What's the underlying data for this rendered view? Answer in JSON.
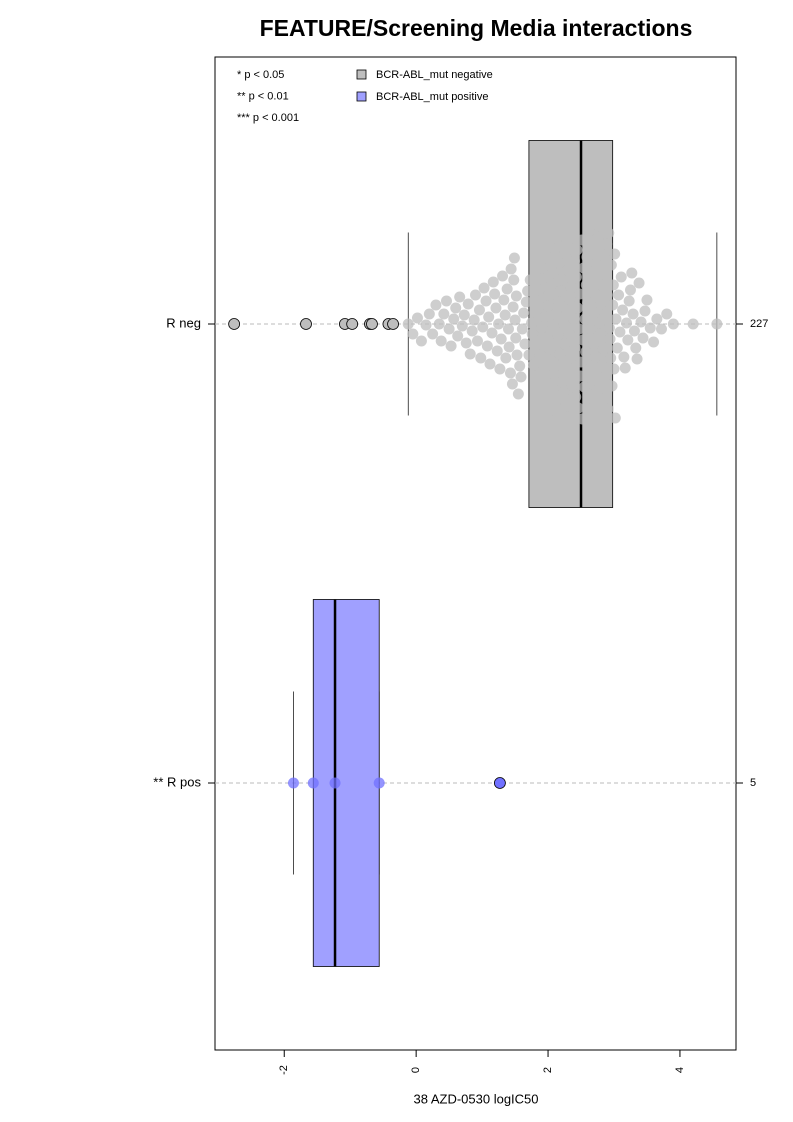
{
  "chart_data": {
    "type": "boxplot",
    "title": "FEATURE/Screening Media interactions",
    "x_label": "38 AZD-0530 logIC50",
    "xlim": [
      -3.05,
      4.85
    ],
    "xticks": [
      -2,
      0,
      2,
      4
    ],
    "annotations": [
      "* p < 0.05",
      "** p < 0.01",
      "*** p < 0.001"
    ],
    "groups": [
      {
        "name": "BCR-ABL_mut negative",
        "label": "R neg",
        "n": 227,
        "color": "#bebebe",
        "point_color": "#bebebe",
        "q1": 1.71,
        "median": 2.5,
        "q3": 2.98,
        "whisker_low": -0.12,
        "whisker_high": 4.56,
        "values": [
          -2.76,
          -1.67,
          -1.08,
          -0.97,
          -0.7,
          -0.67,
          -0.42,
          -0.35,
          -0.12,
          -0.05,
          0.02,
          0.08,
          0.15,
          0.2,
          0.25,
          0.3,
          0.35,
          0.38,
          0.42,
          0.46,
          0.5,
          0.53,
          0.57,
          0.6,
          0.63,
          0.66,
          0.7,
          0.73,
          0.76,
          0.79,
          0.82,
          0.85,
          0.88,
          0.9,
          0.93,
          0.96,
          0.98,
          1.01,
          1.03,
          1.06,
          1.08,
          1.1,
          1.12,
          1.15,
          1.17,
          1.19,
          1.21,
          1.23,
          1.25,
          1.27,
          1.29,
          1.31,
          1.33,
          1.35,
          1.36,
          1.38,
          1.4,
          1.41,
          1.43,
          1.44,
          1.46,
          1.47,
          1.48,
          1.49,
          1.5,
          1.51,
          1.52,
          1.53,
          1.55,
          1.57,
          1.59,
          1.61,
          1.63,
          1.65,
          1.67,
          1.69,
          1.71,
          1.73,
          1.75,
          1.76,
          1.78,
          1.8,
          1.81,
          1.83,
          1.85,
          1.86,
          1.88,
          1.9,
          1.91,
          1.92,
          1.94,
          1.95,
          1.96,
          1.98,
          1.99,
          2.0,
          2.01,
          2.03,
          2.04,
          2.05,
          2.06,
          2.07,
          2.08,
          2.09,
          2.1,
          2.11,
          2.12,
          2.13,
          2.14,
          2.15,
          2.16,
          2.17,
          2.18,
          2.19,
          2.2,
          2.21,
          2.22,
          2.23,
          2.24,
          2.25,
          2.26,
          2.27,
          2.28,
          2.29,
          2.3,
          2.31,
          2.32,
          2.33,
          2.34,
          2.35,
          2.36,
          2.37,
          2.38,
          2.39,
          2.4,
          2.41,
          2.42,
          2.43,
          2.44,
          2.45,
          2.46,
          2.47,
          2.48,
          2.49,
          2.5,
          2.51,
          2.52,
          2.53,
          2.54,
          2.55,
          2.56,
          2.57,
          2.58,
          2.59,
          2.6,
          2.61,
          2.62,
          2.63,
          2.64,
          2.65,
          2.66,
          2.67,
          2.68,
          2.69,
          2.7,
          2.71,
          2.72,
          2.73,
          2.74,
          2.75,
          2.76,
          2.77,
          2.78,
          2.79,
          2.8,
          2.81,
          2.82,
          2.83,
          2.84,
          2.85,
          2.86,
          2.87,
          2.88,
          2.89,
          2.9,
          2.91,
          2.92,
          2.93,
          2.94,
          2.95,
          2.96,
          2.97,
          2.98,
          2.99,
          3.0,
          3.01,
          3.02,
          3.03,
          3.05,
          3.07,
          3.09,
          3.11,
          3.13,
          3.15,
          3.17,
          3.19,
          3.21,
          3.23,
          3.25,
          3.27,
          3.29,
          3.31,
          3.33,
          3.35,
          3.38,
          3.41,
          3.44,
          3.47,
          3.5,
          3.55,
          3.6,
          3.65,
          3.72,
          3.8,
          3.9,
          4.2,
          4.56
        ]
      },
      {
        "name": "BCR-ABL_mut positive",
        "label": "** R pos",
        "n": 5,
        "color": "#a0a0ff",
        "point_color": "#7070ff",
        "q1": -1.56,
        "median": -1.23,
        "q3": -0.56,
        "whisker_low": -1.86,
        "whisker_high": -0.56,
        "values": [
          -1.86,
          -1.56,
          -1.23,
          -0.56,
          1.27
        ]
      }
    ]
  }
}
